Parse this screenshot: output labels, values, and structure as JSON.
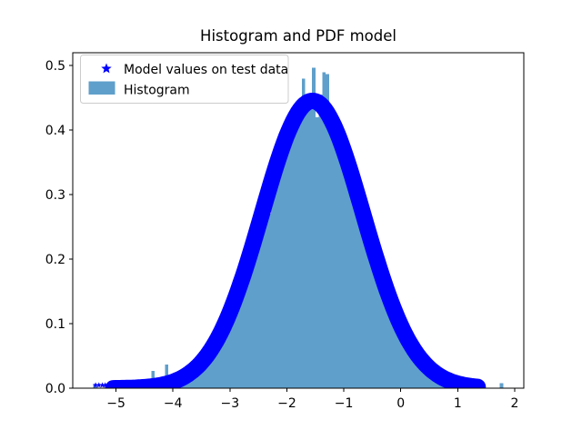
{
  "title": "Histogram and PDF model",
  "legend": {
    "items": [
      {
        "label": "Model values on test data",
        "marker": "star",
        "color": "#0000ff"
      },
      {
        "label": "Histogram",
        "marker": "patch",
        "color": "#5f9fcb"
      }
    ]
  },
  "chart_data": {
    "type": "histogram+line",
    "title": "Histogram and PDF model",
    "xlabel": "",
    "ylabel": "",
    "xlim": [
      -5.76,
      2.16
    ],
    "ylim": [
      0,
      0.52
    ],
    "grid": false,
    "legend_position": "upper left",
    "xticks": {
      "values": [
        -5,
        -4,
        -3,
        -2,
        -1,
        0,
        1,
        2
      ],
      "labels": [
        "−5",
        "−4",
        "−3",
        "−2",
        "−1",
        "0",
        "1",
        "2"
      ]
    },
    "yticks": {
      "values": [
        0,
        0.1,
        0.2,
        0.3,
        0.4,
        0.5
      ],
      "labels": [
        "0.0",
        "0.1",
        "0.2",
        "0.3",
        "0.4",
        "0.5"
      ]
    },
    "histogram": {
      "label": "Histogram",
      "color": "#5f9fcb",
      "bin_start": -5.4,
      "bin_width": 0.06,
      "heights": [
        0.006,
        0,
        0,
        0,
        0.004,
        0.006,
        0.003,
        0.007,
        0.004,
        0.002,
        0.005,
        0.003,
        0.012,
        0.005,
        0.004,
        0.006,
        0.004,
        0.027,
        0.006,
        0.008,
        0.007,
        0.037,
        0.01,
        0.009,
        0.014,
        0.017,
        0.016,
        0.023,
        0.027,
        0.028,
        0.037,
        0.043,
        0.044,
        0.056,
        0.059,
        0.073,
        0.088,
        0.087,
        0.104,
        0.108,
        0.133,
        0.131,
        0.158,
        0.165,
        0.183,
        0.21,
        0.215,
        0.246,
        0.251,
        0.284,
        0.29,
        0.271,
        0.338,
        0.342,
        0.372,
        0.374,
        0.4,
        0.401,
        0.424,
        0.422,
        0.441,
        0.48,
        0.438,
        0.446,
        0.497,
        0.42,
        0.455,
        0.49,
        0.487,
        0.43,
        0.418,
        0.404,
        0.38,
        0.375,
        0.348,
        0.34,
        0.323,
        0.295,
        0.27,
        0.26,
        0.249,
        0.223,
        0.213,
        0.195,
        0.172,
        0.163,
        0.141,
        0.134,
        0.115,
        0.107,
        0.091,
        0.084,
        0.075,
        0.062,
        0.057,
        0.047,
        0.043,
        0.037,
        0.03,
        0.028,
        0.021,
        0.02,
        0.015,
        0.014,
        0.011,
        0.01,
        0.007,
        0.007,
        0.005,
        0.004,
        0.004,
        0.003,
        0.002,
        0.002,
        0.001,
        0.001,
        0.001,
        0,
        0,
        0.008,
        0
      ]
    },
    "model_curve": {
      "label": "Model values on test data",
      "color": "#0000ff",
      "marker": "star",
      "shape": "gaussian",
      "mu": -1.55,
      "sigma": 0.89,
      "peak_pdf": 0.4455,
      "x_min": -5.37,
      "x_max": 1.35,
      "solid_from": -5.05,
      "tail_marker_x": [
        -5.36,
        -5.3,
        -5.24,
        -5.19,
        -5.13,
        -5.08,
        1.34
      ],
      "sample_points": {
        "x": [
          -5.25,
          -4.75,
          -4.25,
          -3.75,
          -3.25,
          -2.75,
          -2.25,
          -1.75,
          -1.25,
          -0.75,
          -0.25,
          0.25,
          0.75,
          1.25
        ],
        "pdf": [
          0.0001,
          0.0007,
          0.0045,
          0.021,
          0.072,
          0.18,
          0.327,
          0.434,
          0.421,
          0.297,
          0.153,
          0.058,
          0.016,
          0.003
        ]
      }
    }
  }
}
